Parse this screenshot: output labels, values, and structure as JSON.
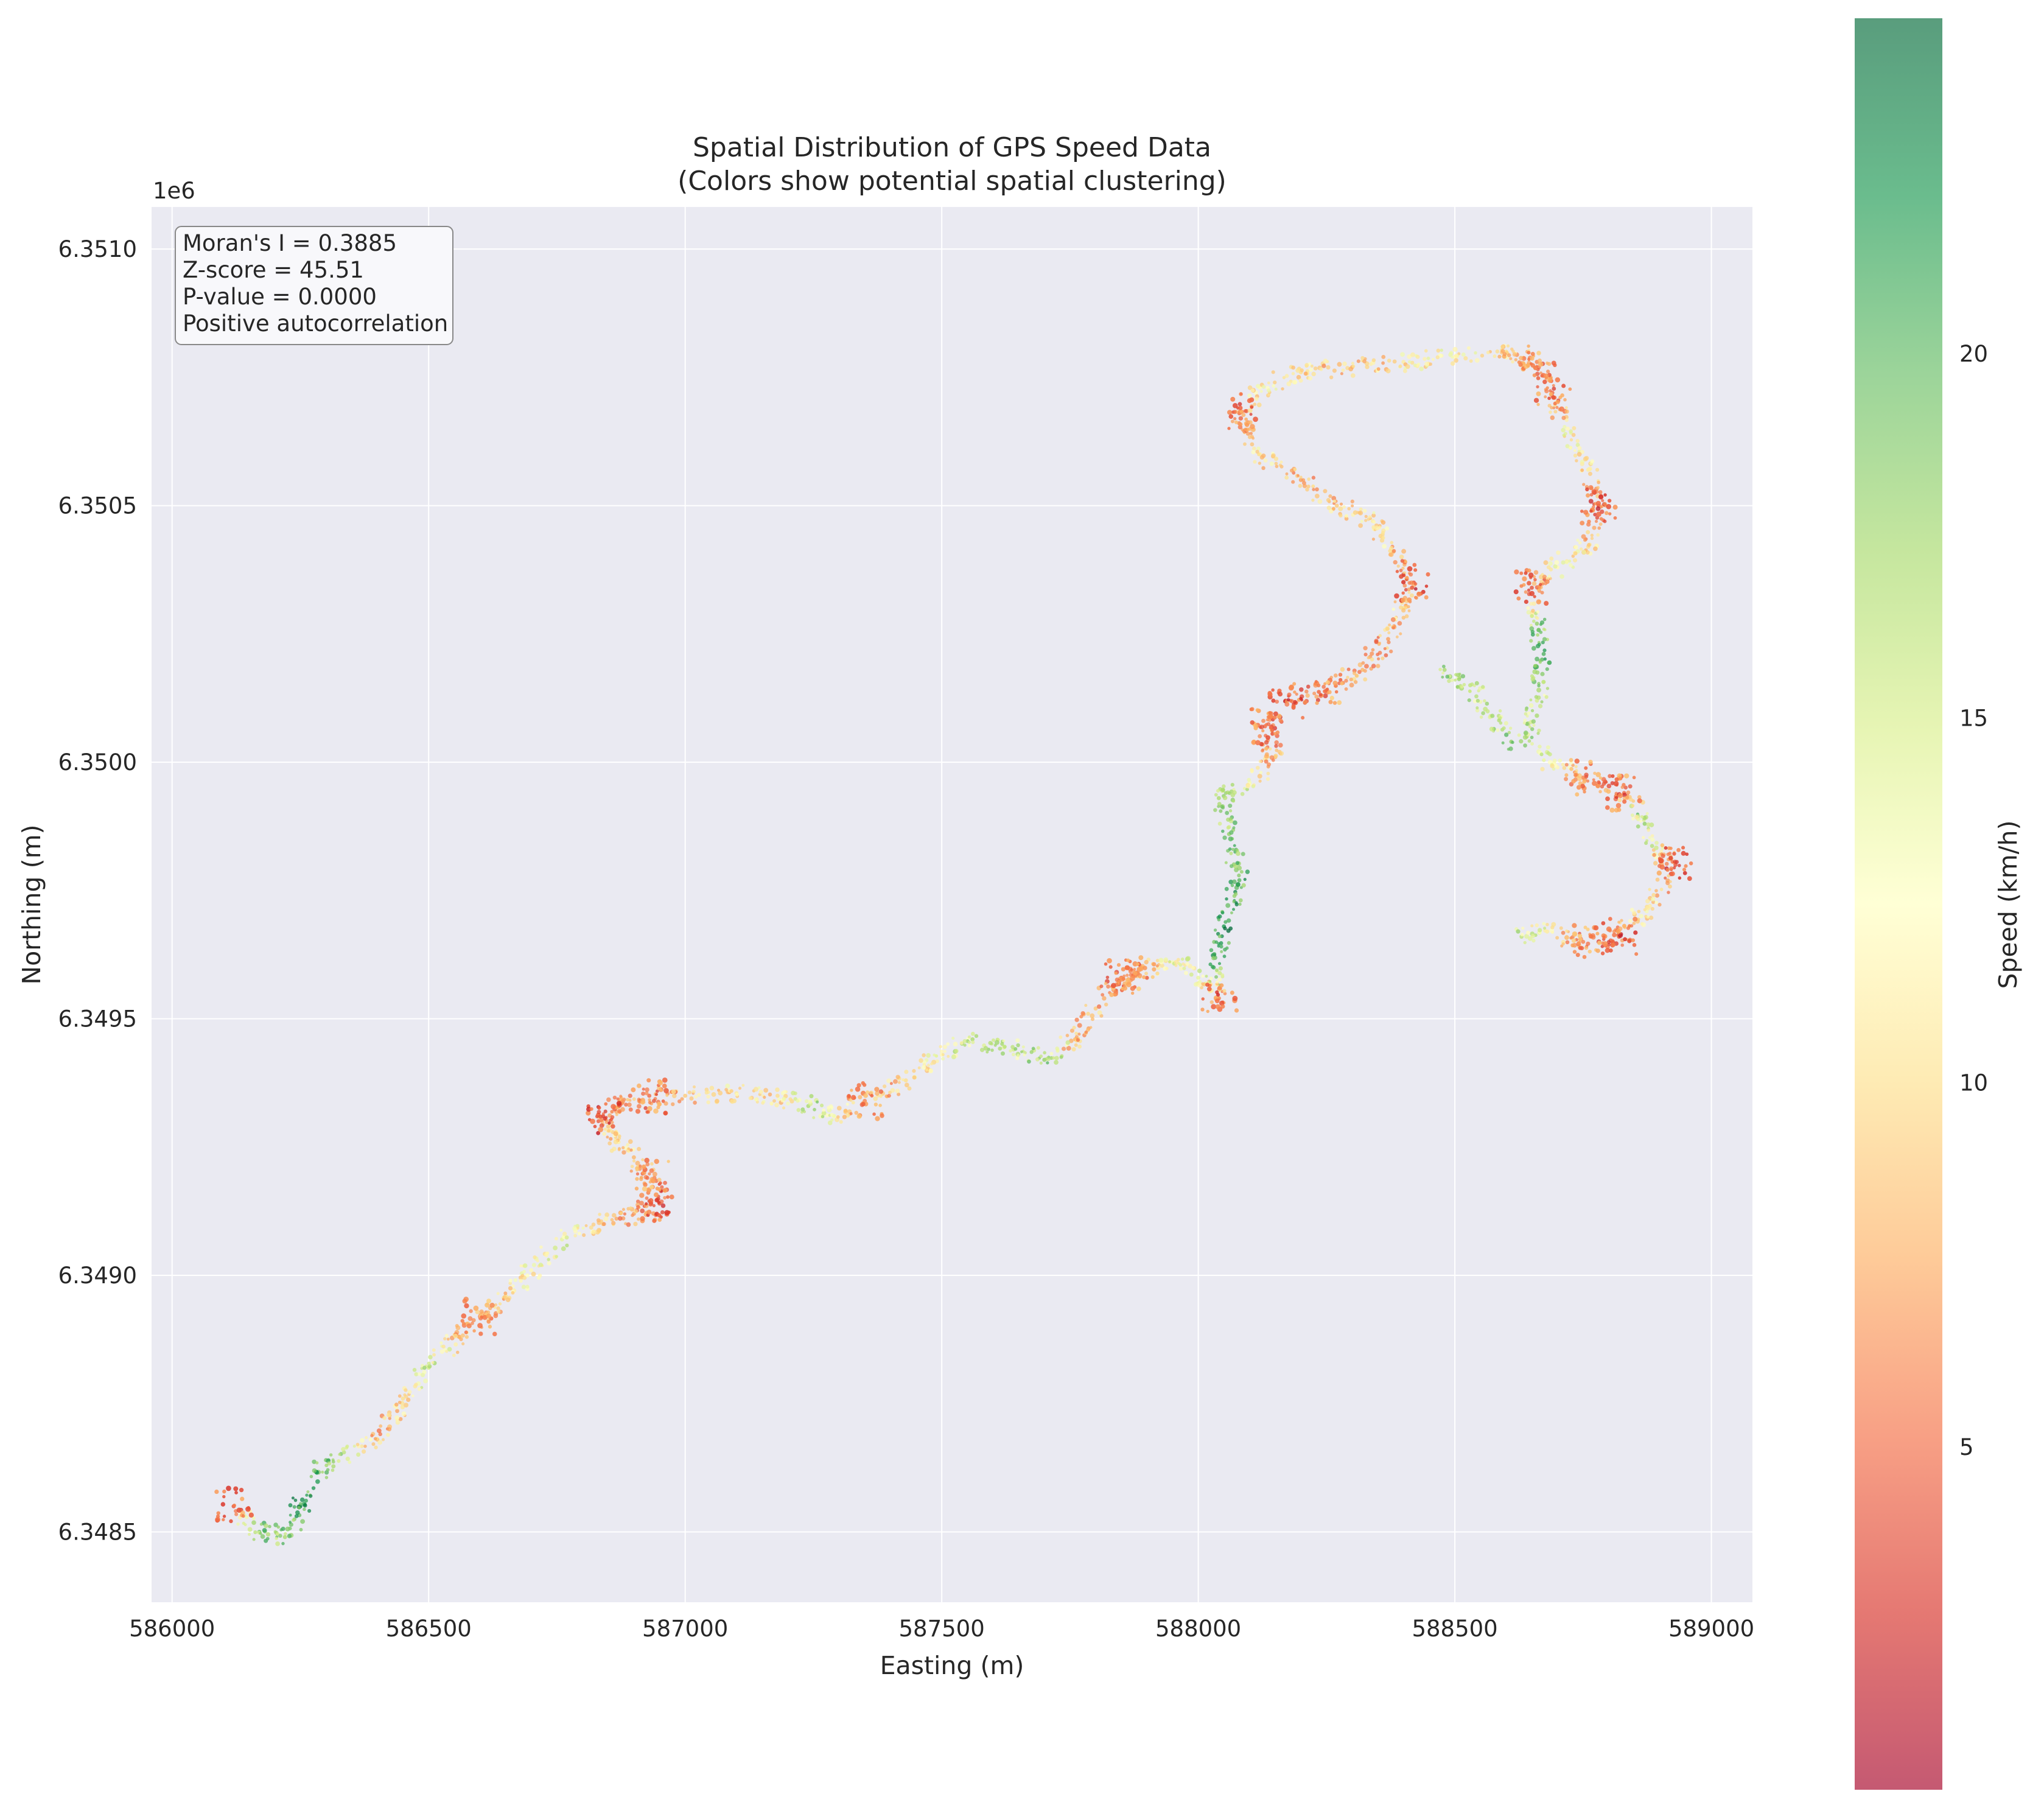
{
  "chart_data": {
    "type": "scatter",
    "title": "Spatial Distribution of GPS Speed Data",
    "subtitle": "(Colors show potential spatial clustering)",
    "xlabel": "Easting (m)",
    "ylabel": "Northing (m)",
    "y_offset_label": "1e6",
    "xlim": [
      585960,
      589080
    ],
    "ylim": [
      6348363,
      6351082
    ],
    "x_ticks": [
      586000,
      586500,
      587000,
      587500,
      588000,
      588500,
      589000
    ],
    "x_tick_labels": [
      "586000",
      "586500",
      "587000",
      "587500",
      "588000",
      "588500",
      "589000"
    ],
    "y_ticks": [
      6348500,
      6349000,
      6349500,
      6350000,
      6350500,
      6351000
    ],
    "y_tick_labels": [
      "6.3485",
      "6.3490",
      "6.3495",
      "6.3500",
      "6.3505",
      "6.3510"
    ],
    "grid": true,
    "stats_box": {
      "lines": [
        "Moran's I = 0.3885",
        "Z-score = 45.51",
        "P-value = 0.0000",
        "Positive autocorrelation"
      ],
      "placement": "top-left"
    },
    "colorbar": {
      "label": "Speed (km/h)",
      "min": 0.3,
      "max": 24.6,
      "ticks": [
        5,
        10,
        15,
        20
      ],
      "tick_labels": [
        "5",
        "10",
        "15",
        "20"
      ],
      "colormap": "RdYlGn",
      "stops": [
        "#a50026",
        "#d73027",
        "#f46d43",
        "#fdae61",
        "#fee08b",
        "#ffffbf",
        "#d9ef8b",
        "#a6d96a",
        "#66bd63",
        "#1a9850",
        "#006837"
      ]
    },
    "route_points": [
      {
        "x": 586120,
        "y": 6348550,
        "speed": 4
      },
      {
        "x": 586170,
        "y": 6348500,
        "speed": 20
      },
      {
        "x": 586220,
        "y": 6348490,
        "speed": 17
      },
      {
        "x": 586250,
        "y": 6348550,
        "speed": 22
      },
      {
        "x": 586300,
        "y": 6348640,
        "speed": 19
      },
      {
        "x": 586400,
        "y": 6348680,
        "speed": 8
      },
      {
        "x": 586450,
        "y": 6348760,
        "speed": 10
      },
      {
        "x": 586500,
        "y": 6348820,
        "speed": 15
      },
      {
        "x": 586560,
        "y": 6348880,
        "speed": 9
      },
      {
        "x": 586600,
        "y": 6348920,
        "speed": 6
      },
      {
        "x": 586650,
        "y": 6348960,
        "speed": 10
      },
      {
        "x": 586700,
        "y": 6349010,
        "speed": 12
      },
      {
        "x": 586760,
        "y": 6349070,
        "speed": 14
      },
      {
        "x": 586840,
        "y": 6349100,
        "speed": 9
      },
      {
        "x": 586900,
        "y": 6349120,
        "speed": 7
      },
      {
        "x": 586950,
        "y": 6349140,
        "speed": 4
      },
      {
        "x": 586940,
        "y": 6349190,
        "speed": 6
      },
      {
        "x": 586900,
        "y": 6349230,
        "speed": 8
      },
      {
        "x": 586870,
        "y": 6349260,
        "speed": 11
      },
      {
        "x": 586850,
        "y": 6349290,
        "speed": 9
      },
      {
        "x": 586840,
        "y": 6349310,
        "speed": 3
      },
      {
        "x": 586870,
        "y": 6349330,
        "speed": 8
      },
      {
        "x": 586930,
        "y": 6349350,
        "speed": 5
      },
      {
        "x": 587000,
        "y": 6349350,
        "speed": 9
      },
      {
        "x": 587100,
        "y": 6349355,
        "speed": 11
      },
      {
        "x": 587180,
        "y": 6349350,
        "speed": 10
      },
      {
        "x": 587240,
        "y": 6349330,
        "speed": 17
      },
      {
        "x": 587290,
        "y": 6349310,
        "speed": 13
      },
      {
        "x": 587350,
        "y": 6349340,
        "speed": 6
      },
      {
        "x": 587430,
        "y": 6349380,
        "speed": 10
      },
      {
        "x": 587500,
        "y": 6349430,
        "speed": 12
      },
      {
        "x": 587560,
        "y": 6349460,
        "speed": 17
      },
      {
        "x": 587640,
        "y": 6349440,
        "speed": 15
      },
      {
        "x": 587700,
        "y": 6349420,
        "speed": 18
      },
      {
        "x": 587760,
        "y": 6349460,
        "speed": 8
      },
      {
        "x": 587800,
        "y": 6349520,
        "speed": 9
      },
      {
        "x": 587850,
        "y": 6349580,
        "speed": 5
      },
      {
        "x": 587880,
        "y": 6349590,
        "speed": 6
      },
      {
        "x": 587950,
        "y": 6349610,
        "speed": 13
      },
      {
        "x": 588000,
        "y": 6349580,
        "speed": 14
      },
      {
        "x": 588040,
        "y": 6349540,
        "speed": 4
      },
      {
        "x": 588030,
        "y": 6349600,
        "speed": 21
      },
      {
        "x": 588050,
        "y": 6349680,
        "speed": 22
      },
      {
        "x": 588080,
        "y": 6349770,
        "speed": 20
      },
      {
        "x": 588060,
        "y": 6349860,
        "speed": 18
      },
      {
        "x": 588040,
        "y": 6349930,
        "speed": 17
      },
      {
        "x": 588100,
        "y": 6349960,
        "speed": 13
      },
      {
        "x": 588150,
        "y": 6350010,
        "speed": 8
      },
      {
        "x": 588130,
        "y": 6350070,
        "speed": 5
      },
      {
        "x": 588170,
        "y": 6350120,
        "speed": 4
      },
      {
        "x": 588250,
        "y": 6350140,
        "speed": 6
      },
      {
        "x": 588320,
        "y": 6350180,
        "speed": 8
      },
      {
        "x": 588370,
        "y": 6350240,
        "speed": 7
      },
      {
        "x": 588400,
        "y": 6350300,
        "speed": 10
      },
      {
        "x": 588420,
        "y": 6350350,
        "speed": 4
      },
      {
        "x": 588380,
        "y": 6350410,
        "speed": 9
      },
      {
        "x": 588340,
        "y": 6350470,
        "speed": 11
      },
      {
        "x": 588270,
        "y": 6350500,
        "speed": 9
      },
      {
        "x": 588200,
        "y": 6350550,
        "speed": 7
      },
      {
        "x": 588120,
        "y": 6350600,
        "speed": 11
      },
      {
        "x": 588080,
        "y": 6350680,
        "speed": 5
      },
      {
        "x": 588120,
        "y": 6350730,
        "speed": 12
      },
      {
        "x": 588200,
        "y": 6350760,
        "speed": 10
      },
      {
        "x": 588300,
        "y": 6350770,
        "speed": 8
      },
      {
        "x": 588400,
        "y": 6350780,
        "speed": 11
      },
      {
        "x": 588500,
        "y": 6350790,
        "speed": 12
      },
      {
        "x": 588600,
        "y": 6350800,
        "speed": 10
      },
      {
        "x": 588660,
        "y": 6350780,
        "speed": 6
      },
      {
        "x": 588690,
        "y": 6350720,
        "speed": 5
      },
      {
        "x": 588720,
        "y": 6350650,
        "speed": 12
      },
      {
        "x": 588760,
        "y": 6350570,
        "speed": 11
      },
      {
        "x": 588780,
        "y": 6350500,
        "speed": 4
      },
      {
        "x": 588760,
        "y": 6350420,
        "speed": 10
      },
      {
        "x": 588700,
        "y": 6350380,
        "speed": 12
      },
      {
        "x": 588650,
        "y": 6350340,
        "speed": 4
      },
      {
        "x": 588660,
        "y": 6350270,
        "speed": 18
      },
      {
        "x": 588670,
        "y": 6350200,
        "speed": 20
      },
      {
        "x": 588660,
        "y": 6350120,
        "speed": 15
      },
      {
        "x": 588640,
        "y": 6350050,
        "speed": 17
      },
      {
        "x": 588700,
        "y": 6349990,
        "speed": 12
      },
      {
        "x": 588750,
        "y": 6349970,
        "speed": 6
      },
      {
        "x": 588830,
        "y": 6349940,
        "speed": 5
      },
      {
        "x": 588870,
        "y": 6349880,
        "speed": 18
      },
      {
        "x": 588900,
        "y": 6349820,
        "speed": 9
      },
      {
        "x": 588930,
        "y": 6349800,
        "speed": 4
      },
      {
        "x": 588880,
        "y": 6349720,
        "speed": 11
      },
      {
        "x": 588840,
        "y": 6349680,
        "speed": 9
      },
      {
        "x": 588820,
        "y": 6349660,
        "speed": 4
      },
      {
        "x": 588750,
        "y": 6349650,
        "speed": 6
      },
      {
        "x": 588680,
        "y": 6349670,
        "speed": 11
      },
      {
        "x": 588630,
        "y": 6349660,
        "speed": 16
      },
      {
        "x": 588480,
        "y": 6350180,
        "speed": 17
      },
      {
        "x": 588530,
        "y": 6350150,
        "speed": 16
      },
      {
        "x": 588570,
        "y": 6350090,
        "speed": 15
      },
      {
        "x": 588610,
        "y": 6350040,
        "speed": 18
      }
    ]
  }
}
